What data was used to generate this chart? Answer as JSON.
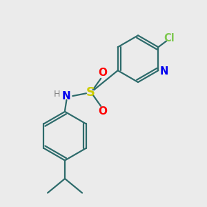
{
  "background_color": "#ebebeb",
  "bond_color": "#2d6b6b",
  "cl_color": "#7ec850",
  "n_color": "#0000ee",
  "s_color": "#cccc00",
  "o_color": "#ff0000",
  "h_color": "#808080",
  "figsize": [
    3.0,
    3.0
  ],
  "dpi": 100,
  "xlim": [
    0,
    10
  ],
  "ylim": [
    0,
    10
  ]
}
